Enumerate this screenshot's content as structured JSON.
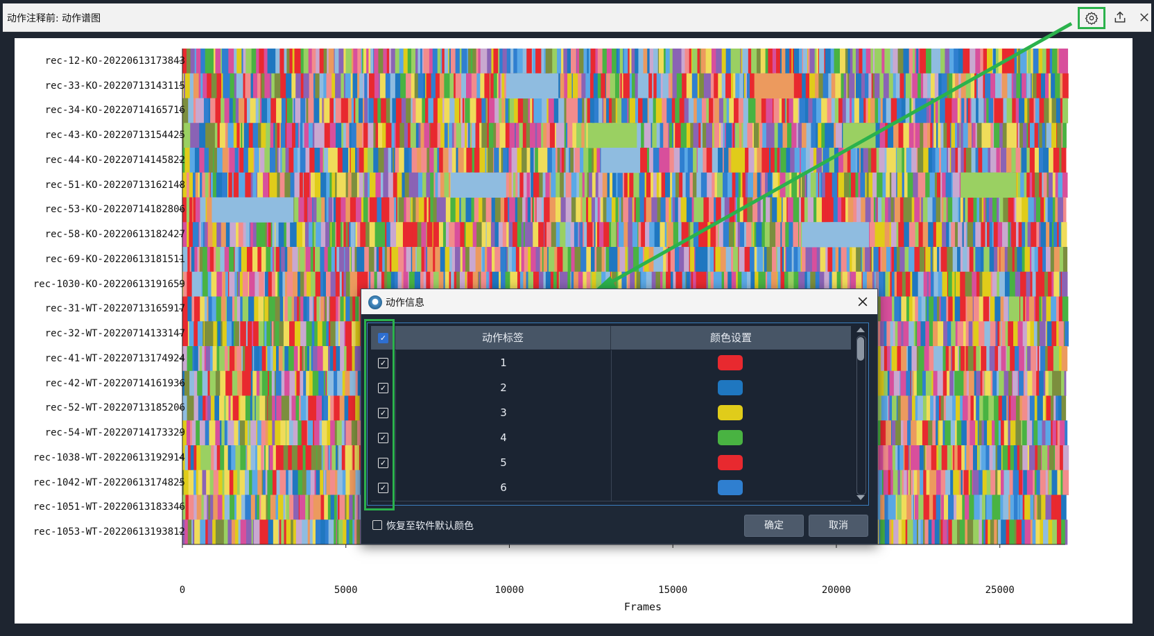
{
  "window": {
    "title": "动作注释前: 动作谱图",
    "buttons": [
      {
        "name": "settings",
        "icon": "gear-icon"
      },
      {
        "name": "export",
        "icon": "upload-icon"
      },
      {
        "name": "close",
        "icon": "close-icon"
      }
    ]
  },
  "chart_data": {
    "type": "heatmap",
    "xlabel": "Frames",
    "xlim": [
      0,
      27000
    ],
    "xticks": [
      "0",
      "5000",
      "10000",
      "15000",
      "20000",
      "25000"
    ],
    "xtick_values": [
      0,
      5000,
      10000,
      15000,
      20000,
      25000
    ],
    "rows": [
      "rec-12-KO-20220613173843",
      "rec-33-KO-20220713143115",
      "rec-34-KO-20220714165716",
      "rec-43-KO-20220713154425",
      "rec-44-KO-20220714145822",
      "rec-51-KO-20220713162148",
      "rec-53-KO-20220714182806",
      "rec-58-KO-20220613182427",
      "rec-69-KO-20220613181511",
      "rec-1030-KO-20220613191659",
      "rec-31-WT-20220713165917",
      "rec-32-WT-20220714133147",
      "rec-41-WT-20220713174924",
      "rec-42-WT-20220714161936",
      "rec-52-WT-20220713185206",
      "rec-54-WT-20220714173329",
      "rec-1038-WT-20220613192914",
      "rec-1042-WT-20220613174825",
      "rec-1051-WT-20220613183346",
      "rec-1053-WT-20220613193812"
    ],
    "palette": [
      "#e8292f",
      "#1f77c0",
      "#e0cc1a",
      "#49b342",
      "#e8292f",
      "#2f7fd0",
      "#8fbce0",
      "#9ad062",
      "#c9a8d0",
      "#ec9a5e",
      "#8a63b5",
      "#f28c8c",
      "#f0dc5a",
      "#d84f9c",
      "#5aa8e6",
      "#7c8e3e"
    ],
    "highlighted_blocks": [
      {
        "row": 1,
        "from": 9900,
        "to": 11500,
        "color": "#8fbce0"
      },
      {
        "row": 1,
        "from": 17500,
        "to": 18700,
        "color": "#ec9a5e"
      },
      {
        "row": 3,
        "from": 12400,
        "to": 13900,
        "color": "#9ad062"
      },
      {
        "row": 3,
        "from": 20200,
        "to": 21200,
        "color": "#9ad062"
      },
      {
        "row": 5,
        "from": 8200,
        "to": 9900,
        "color": "#8fbce0"
      },
      {
        "row": 5,
        "from": 23800,
        "to": 25500,
        "color": "#9ad062"
      },
      {
        "row": 6,
        "from": 900,
        "to": 3400,
        "color": "#8fbce0"
      },
      {
        "row": 7,
        "from": 19000,
        "to": 21000,
        "color": "#8fbce0"
      },
      {
        "row": 4,
        "from": 12800,
        "to": 14000,
        "color": "#8fbce0"
      }
    ]
  },
  "dialog": {
    "title": "动作信息",
    "headers": {
      "label": "动作标签",
      "color": "颜色设置"
    },
    "header_checked": true,
    "rows": [
      {
        "label": "1",
        "color": "#e8292f",
        "checked": true
      },
      {
        "label": "2",
        "color": "#1f77c0",
        "checked": true
      },
      {
        "label": "3",
        "color": "#e0cc1a",
        "checked": true
      },
      {
        "label": "4",
        "color": "#49b342",
        "checked": true
      },
      {
        "label": "5",
        "color": "#e8292f",
        "checked": true
      },
      {
        "label": "6",
        "color": "#2f7fd0",
        "checked": true
      }
    ],
    "restore_default_label": "恢复至软件默认颜色",
    "ok_label": "确定",
    "cancel_label": "取消"
  }
}
